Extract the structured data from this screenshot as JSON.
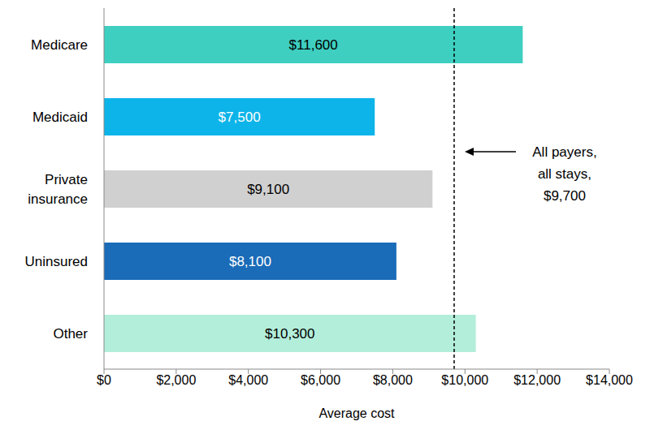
{
  "chart_data": {
    "type": "bar",
    "orientation": "horizontal",
    "categories": [
      "Medicare",
      "Medicaid",
      "Private insurance",
      "Uninsured",
      "Other"
    ],
    "values": [
      11600,
      7500,
      9100,
      8100,
      10300
    ],
    "value_labels": [
      "$11,600",
      "$7,500",
      "$9,100",
      "$8,100",
      "$10,300"
    ],
    "colors": [
      "#3ECFC0",
      "#0DB4E9",
      "#D0D0D0",
      "#1A6BB8",
      "#B3EEDB"
    ],
    "xlabel": "Average cost",
    "xlim": [
      0,
      14000
    ],
    "xticks": [
      {
        "value": 0,
        "label": "$0"
      },
      {
        "value": 2000,
        "label": "$2,000"
      },
      {
        "value": 4000,
        "label": "$4,000"
      },
      {
        "value": 6000,
        "label": "$6,000"
      },
      {
        "value": 8000,
        "label": "$8,000"
      },
      {
        "value": 10000,
        "label": "$10,000"
      },
      {
        "value": 12000,
        "label": "$12,000"
      },
      {
        "value": 14000,
        "label": "$14,000"
      }
    ],
    "data_labels": true,
    "grid": false,
    "reference_line": {
      "value": 9700,
      "label": [
        "All payers,",
        "all stays,",
        "$9,700"
      ]
    }
  }
}
